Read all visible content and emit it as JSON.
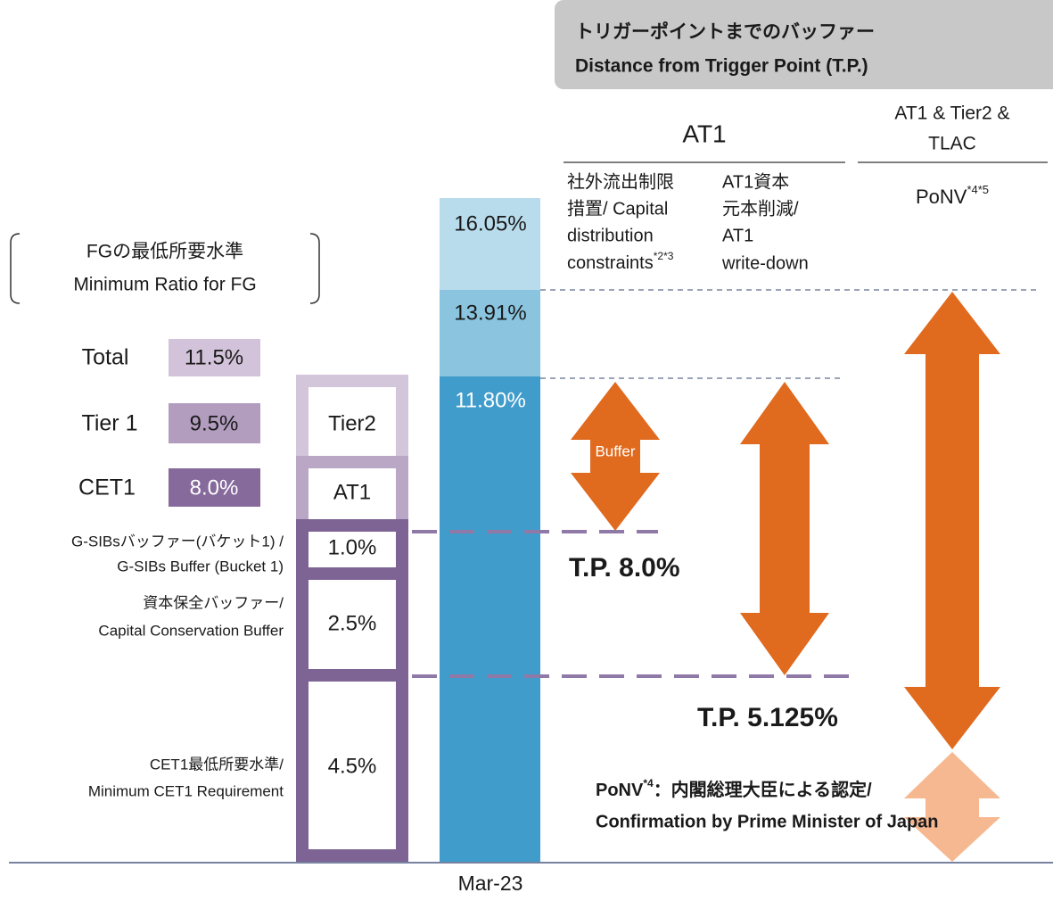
{
  "header": {
    "line1": "トリガーポイントまでのバッファー",
    "line2": "Distance from Trigger Point (T.P.)"
  },
  "groups": {
    "at1": "AT1",
    "ponv_line1": "AT1 & Tier2 &",
    "ponv_line2": "TLAC"
  },
  "columns": {
    "distribution": [
      "社外流出制限",
      "措置/ Capital",
      "distribution",
      "constraints"
    ],
    "distribution_note": "*2*3",
    "writedown": [
      "AT1資本",
      "元本削減/",
      "AT1",
      "write-down"
    ],
    "ponv": "PoNV",
    "ponv_note": "*4*5"
  },
  "minimum": {
    "title1": "FGの最低所要水準",
    "title2": "Minimum Ratio for FG",
    "rows": [
      {
        "label": "Total",
        "value": "11.5%"
      },
      {
        "label": "Tier 1",
        "value": "9.5%"
      },
      {
        "label": "CET1",
        "value": "8.0%"
      }
    ]
  },
  "stack": {
    "tier2": "Tier2",
    "at1": "AT1",
    "gsib": "1.0%",
    "ccb": "2.5%",
    "cet1min": "4.5%"
  },
  "stack_labels": {
    "gsib": [
      "G-SIBsバッファー(バケット1) /",
      "G-SIBs Buffer (Bucket 1)"
    ],
    "ccb": [
      "資本保全バッファー/",
      "Capital Conservation Buffer"
    ],
    "cet1min": [
      "CET1最低所要水準/",
      "Minimum CET1 Requirement"
    ]
  },
  "bar": {
    "total": "16.05%",
    "tier1": "13.91%",
    "cet1": "11.80%",
    "period": "Mar-23"
  },
  "buffer": "Buffer",
  "tp1": "T.P. 8.0%",
  "tp2": "T.P. 5.125%",
  "note": {
    "term": "PoNV",
    "sup": "*4",
    "line1": "：内閣総理大臣による認定/",
    "line2": "Confirmation by Prime Minister of Japan"
  }
}
